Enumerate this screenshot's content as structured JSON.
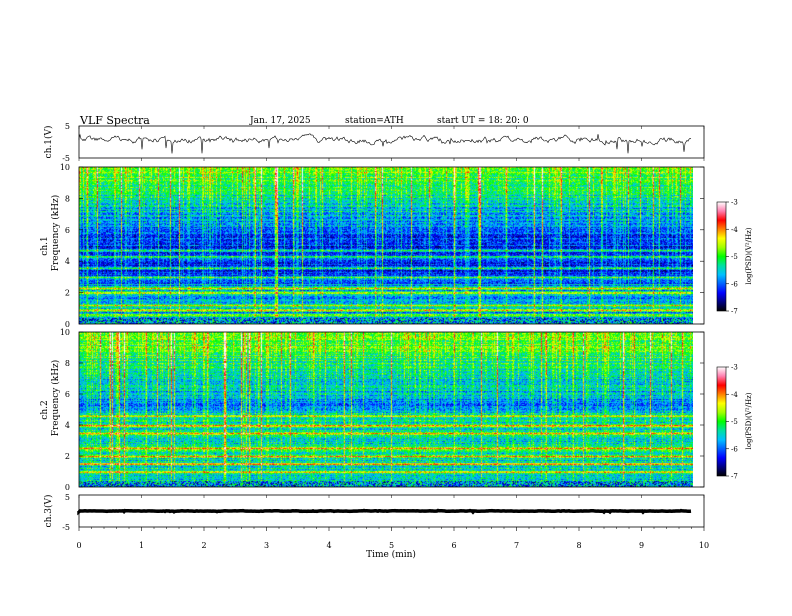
{
  "header": {
    "title": "VLF  Spectra",
    "date": "Jan.  17,  2025",
    "station": "station=ATH",
    "start": "start  UT  =    18: 20: 0"
  },
  "chart_data": [
    {
      "type": "line",
      "ylabel": "ch.1(V)",
      "ylim": [
        -5,
        5
      ],
      "yticks": [
        "5",
        "-5"
      ],
      "xlim": [
        0,
        10
      ],
      "baseline": 0.6,
      "amplitude": 0.4
    },
    {
      "type": "heatmap",
      "ylabel": "ch.1\nFrequency  (kHz)",
      "ylabel_lines": [
        "ch.1",
        "Frequency  (kHz)"
      ],
      "ylim": [
        0,
        10
      ],
      "yticks": [
        "0",
        "2",
        "4",
        "6",
        "8",
        "10"
      ],
      "xlim": [
        0,
        10
      ],
      "colorbar": {
        "label": "log(PSD)(V²/Hz)",
        "ticks": [
          "-3",
          "-4",
          "-5",
          "-6",
          "-7"
        ],
        "range": [
          -7,
          -3
        ]
      },
      "bands_khz": [
        0.6,
        0.9,
        1.2,
        2.0,
        2.3,
        3.0,
        3.6,
        4.3,
        4.7
      ]
    },
    {
      "type": "heatmap",
      "ylabel": "ch.2\nFrequency  (kHz)",
      "ylabel_lines": [
        "ch.2",
        "Frequency  (kHz)"
      ],
      "ylim": [
        0,
        10
      ],
      "yticks": [
        "0",
        "2",
        "4",
        "6",
        "8",
        "10"
      ],
      "xlim": [
        0,
        10
      ],
      "colorbar": {
        "label": "log(PSD)(V²/Hz)",
        "ticks": [
          "-3",
          "-4",
          "-5",
          "-6",
          "-7"
        ],
        "range": [
          -7,
          -3
        ]
      },
      "bands_khz": [
        1.0,
        1.5,
        2.0,
        2.5,
        3.5,
        4.0,
        4.6
      ]
    },
    {
      "type": "line",
      "ylabel": "ch.3(V)",
      "ylim": [
        -5,
        5
      ],
      "yticks": [
        "5",
        "-5"
      ],
      "xlim": [
        0,
        10
      ],
      "baseline": 0,
      "amplitude": 0.05
    }
  ],
  "xaxis": {
    "label": "Time  (min)",
    "ticks": [
      "0",
      "1",
      "2",
      "3",
      "4",
      "5",
      "6",
      "7",
      "8",
      "9",
      "10"
    ],
    "data_end": 9.8
  },
  "colors": {
    "colormap": [
      "#000000",
      "#000080",
      "#0000ff",
      "#0060ff",
      "#00c0ff",
      "#00e0a0",
      "#00ff00",
      "#a0ff00",
      "#ffff00",
      "#ff8000",
      "#ff0000",
      "#ff80b0",
      "#ffffff"
    ],
    "axis": "#000000"
  }
}
